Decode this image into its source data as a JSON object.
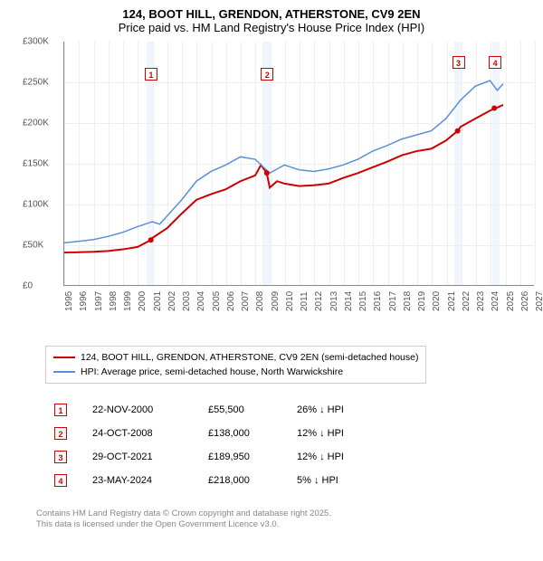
{
  "title": "124, BOOT HILL, GRENDON, ATHERSTONE, CV9 2EN",
  "subtitle": "Price paid vs. HM Land Registry's House Price Index (HPI)",
  "chart": {
    "type": "line",
    "background_color": "#ffffff",
    "xlim": [
      1995,
      2027
    ],
    "ylim": [
      0,
      300000
    ],
    "ytick_step": 50000,
    "yticks": [
      {
        "v": 0,
        "label": "£0"
      },
      {
        "v": 50000,
        "label": "£50K"
      },
      {
        "v": 100000,
        "label": "£100K"
      },
      {
        "v": 150000,
        "label": "£150K"
      },
      {
        "v": 200000,
        "label": "£200K"
      },
      {
        "v": 250000,
        "label": "£250K"
      },
      {
        "v": 300000,
        "label": "£300K"
      }
    ],
    "xticks": [
      1995,
      1996,
      1997,
      1998,
      1999,
      2000,
      2001,
      2002,
      2003,
      2004,
      2005,
      2006,
      2007,
      2008,
      2009,
      2010,
      2011,
      2012,
      2013,
      2014,
      2015,
      2016,
      2017,
      2018,
      2019,
      2020,
      2021,
      2022,
      2023,
      2024,
      2025,
      2026,
      2027
    ],
    "xgrid_color": "#eeeeee",
    "ygrid_color": "#eeeeee",
    "band_color": "#e8f0fa",
    "bands": [
      {
        "from": 2000.6,
        "to": 2001.1
      },
      {
        "from": 2008.5,
        "to": 2009.0
      },
      {
        "from": 2021.5,
        "to": 2022.1
      },
      {
        "from": 2024.1,
        "to": 2024.6
      }
    ],
    "marker_border": "#cc0000",
    "markers": [
      {
        "n": "1",
        "x": 2000.9,
        "y": 260000
      },
      {
        "n": "2",
        "x": 2008.8,
        "y": 260000
      },
      {
        "n": "3",
        "x": 2021.8,
        "y": 275000
      },
      {
        "n": "4",
        "x": 2024.3,
        "y": 275000
      }
    ],
    "series": [
      {
        "name": "price_paid",
        "color": "#cc0000",
        "width": 2,
        "data": [
          [
            1995,
            40000
          ],
          [
            1996,
            40500
          ],
          [
            1997,
            41000
          ],
          [
            1998,
            42000
          ],
          [
            1999,
            44000
          ],
          [
            2000,
            47000
          ],
          [
            2000.9,
            55500
          ],
          [
            2001,
            58000
          ],
          [
            2002,
            70000
          ],
          [
            2003,
            88000
          ],
          [
            2004,
            105000
          ],
          [
            2005,
            112000
          ],
          [
            2006,
            118000
          ],
          [
            2007,
            128000
          ],
          [
            2008,
            135000
          ],
          [
            2008.4,
            148000
          ],
          [
            2008.8,
            138000
          ],
          [
            2009,
            120000
          ],
          [
            2009.5,
            128000
          ],
          [
            2010,
            125000
          ],
          [
            2011,
            122000
          ],
          [
            2012,
            123000
          ],
          [
            2013,
            125000
          ],
          [
            2014,
            132000
          ],
          [
            2015,
            138000
          ],
          [
            2016,
            145000
          ],
          [
            2017,
            152000
          ],
          [
            2018,
            160000
          ],
          [
            2019,
            165000
          ],
          [
            2020,
            168000
          ],
          [
            2021,
            178000
          ],
          [
            2021.8,
            189950
          ],
          [
            2022,
            195000
          ],
          [
            2023,
            205000
          ],
          [
            2024,
            215000
          ],
          [
            2024.4,
            218000
          ],
          [
            2024.9,
            222000
          ]
        ]
      },
      {
        "name": "hpi",
        "color": "#5b8fd6",
        "width": 1.5,
        "data": [
          [
            1995,
            52000
          ],
          [
            1996,
            54000
          ],
          [
            1997,
            56000
          ],
          [
            1998,
            60000
          ],
          [
            1999,
            65000
          ],
          [
            2000,
            72000
          ],
          [
            2001,
            78000
          ],
          [
            2001.5,
            75000
          ],
          [
            2002,
            85000
          ],
          [
            2003,
            105000
          ],
          [
            2004,
            128000
          ],
          [
            2005,
            140000
          ],
          [
            2006,
            148000
          ],
          [
            2007,
            158000
          ],
          [
            2008,
            155000
          ],
          [
            2009,
            138000
          ],
          [
            2010,
            148000
          ],
          [
            2011,
            142000
          ],
          [
            2012,
            140000
          ],
          [
            2013,
            143000
          ],
          [
            2014,
            148000
          ],
          [
            2015,
            155000
          ],
          [
            2016,
            165000
          ],
          [
            2017,
            172000
          ],
          [
            2018,
            180000
          ],
          [
            2019,
            185000
          ],
          [
            2020,
            190000
          ],
          [
            2021,
            205000
          ],
          [
            2022,
            228000
          ],
          [
            2023,
            245000
          ],
          [
            2024,
            252000
          ],
          [
            2024.5,
            240000
          ],
          [
            2024.9,
            248000
          ]
        ]
      }
    ]
  },
  "legend": {
    "items": [
      {
        "color": "#cc0000",
        "label": "124, BOOT HILL, GRENDON, ATHERSTONE, CV9 2EN (semi-detached house)"
      },
      {
        "color": "#5b8fd6",
        "label": "HPI: Average price, semi-detached house, North Warwickshire"
      }
    ]
  },
  "transactions": [
    {
      "n": "1",
      "date": "22-NOV-2000",
      "price": "£55,500",
      "pct": "26% ↓ HPI"
    },
    {
      "n": "2",
      "date": "24-OCT-2008",
      "price": "£138,000",
      "pct": "12% ↓ HPI"
    },
    {
      "n": "3",
      "date": "29-OCT-2021",
      "price": "£189,950",
      "pct": "12% ↓ HPI"
    },
    {
      "n": "4",
      "date": "23-MAY-2024",
      "price": "£218,000",
      "pct": "5% ↓ HPI"
    }
  ],
  "footer": {
    "line1": "Contains HM Land Registry data © Crown copyright and database right 2025.",
    "line2": "This data is licensed under the Open Government Licence v3.0."
  },
  "marker_border_color": "#cc0000"
}
